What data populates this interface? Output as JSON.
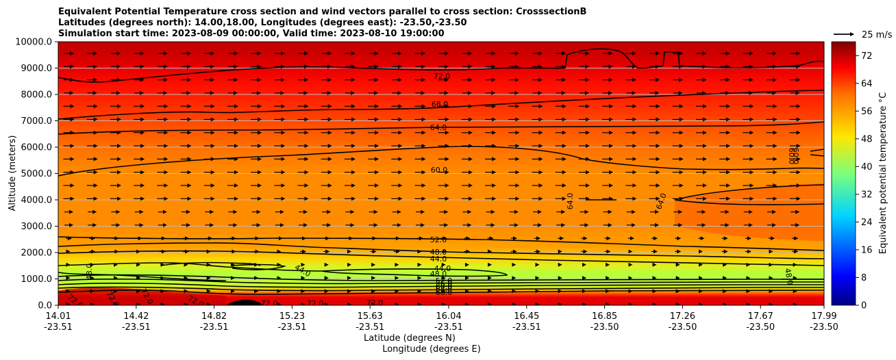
{
  "chart_data": {
    "type": "heatmap",
    "title_lines": [
      "Equivalent Potential Temperature cross section and wind vectors parallel to cross section: CrosssectionB",
      "Latitudes (degrees north): 14.00,18.00, Longitudes (degrees east): -23.50,-23.50",
      "Simulation start time: 2023-08-09 00:00:00, Valid time: 2023-08-10 19:00:00"
    ],
    "xlabel": "Latitude (degrees N)",
    "xlabel2": "Longitude (degrees E)",
    "ylabel": "Altitude (meters)",
    "xlim": [
      14.01,
      17.99
    ],
    "ylim": [
      0,
      10000
    ],
    "x_ticks": [
      {
        "lat": "14.01",
        "lon": "-23.51"
      },
      {
        "lat": "14.42",
        "lon": "-23.51"
      },
      {
        "lat": "14.82",
        "lon": "-23.51"
      },
      {
        "lat": "15.23",
        "lon": "-23.51"
      },
      {
        "lat": "15.63",
        "lon": "-23.51"
      },
      {
        "lat": "16.04",
        "lon": "-23.51"
      },
      {
        "lat": "16.45",
        "lon": "-23.51"
      },
      {
        "lat": "16.85",
        "lon": "-23.50"
      },
      {
        "lat": "17.26",
        "lon": "-23.50"
      },
      {
        "lat": "17.67",
        "lon": "-23.50"
      },
      {
        "lat": "17.99",
        "lon": "-23.50"
      }
    ],
    "y_ticks": [
      "0.0",
      "1000.0",
      "2000.0",
      "3000.0",
      "4000.0",
      "5000.0",
      "6000.0",
      "7000.0",
      "8000.0",
      "9000.0",
      "10000.0"
    ],
    "grid": "horizontal",
    "colorbar": {
      "label": "Equivalent potential temperature °C",
      "min": 0,
      "max": 76,
      "ticks": [
        "0",
        "8",
        "16",
        "24",
        "32",
        "40",
        "48",
        "56",
        "64",
        "72"
      ]
    },
    "quiver_key": "25 m/s",
    "contour_labels": [
      "72.0",
      "68.0",
      "64.0",
      "60.0",
      "60.0",
      "52.0",
      "48.0",
      "44.0",
      "44.0",
      "44.0",
      "48.0",
      "52.0",
      "56.0",
      "60.0",
      "64.0",
      "68.0",
      "72.0",
      "72.0",
      "72.0",
      "72.0",
      "72.0",
      "72.0",
      "72.0",
      "64.0",
      "64.0",
      "60.0",
      "48.0",
      "48.0"
    ],
    "colors": {
      "high": "#c80000",
      "mid": "#ff8c00",
      "low": "#b4ff3c"
    }
  }
}
